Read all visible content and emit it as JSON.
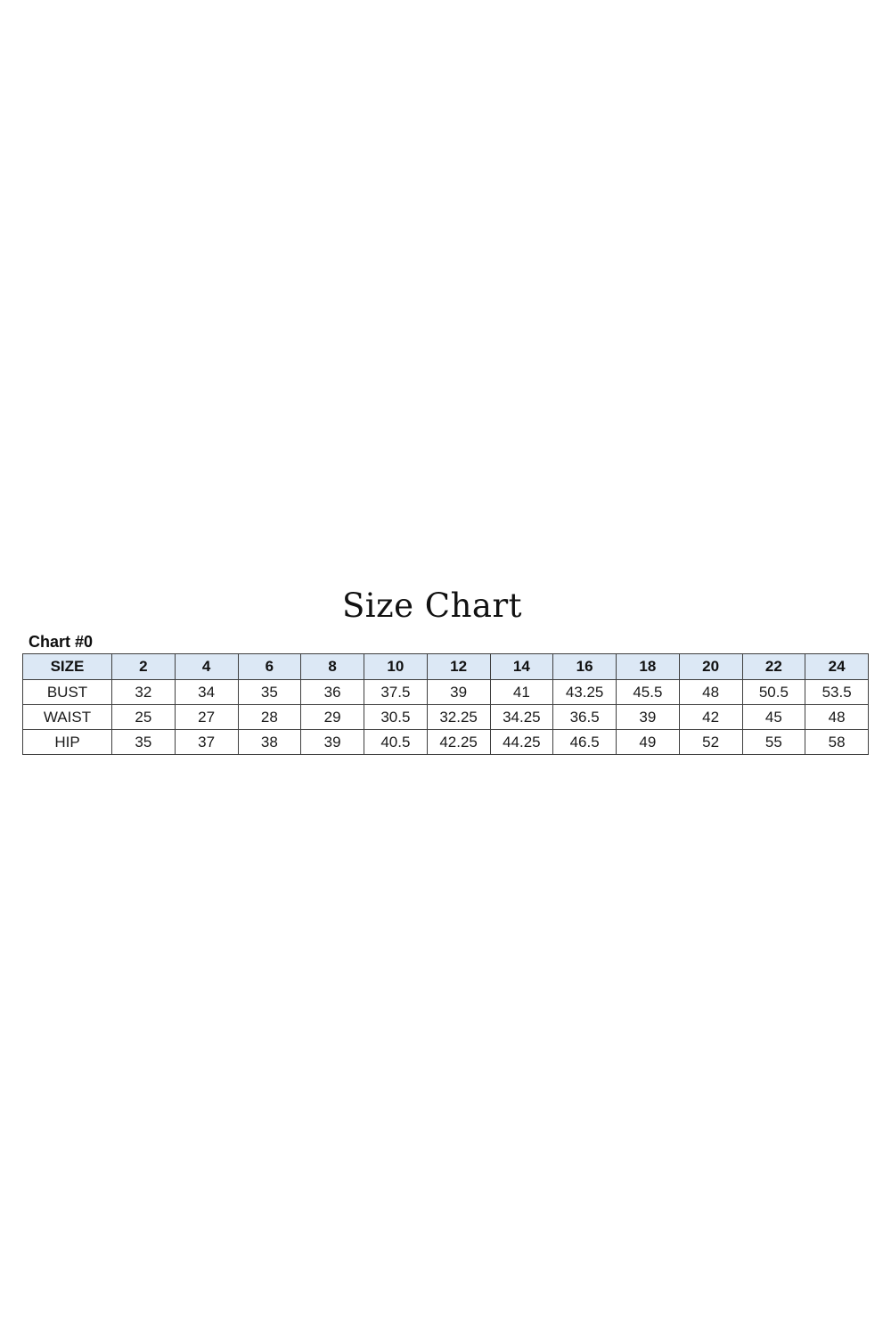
{
  "page": {
    "title": "Size Chart",
    "chart_label": "Chart #0"
  },
  "chart_data": {
    "type": "table",
    "title": "Size Chart",
    "subtitle": "Chart #0",
    "columns": [
      "SIZE",
      "2",
      "4",
      "6",
      "8",
      "10",
      "12",
      "14",
      "16",
      "18",
      "20",
      "22",
      "24"
    ],
    "rows": [
      {
        "label": "BUST",
        "values": [
          "32",
          "34",
          "35",
          "36",
          "37.5",
          "39",
          "41",
          "43.25",
          "45.5",
          "48",
          "50.5",
          "53.5"
        ]
      },
      {
        "label": "WAIST",
        "values": [
          "25",
          "27",
          "28",
          "29",
          "30.5",
          "32.25",
          "34.25",
          "36.5",
          "39",
          "42",
          "45",
          "48"
        ]
      },
      {
        "label": "HIP",
        "values": [
          "35",
          "37",
          "38",
          "39",
          "40.5",
          "42.25",
          "44.25",
          "46.5",
          "49",
          "52",
          "55",
          "58"
        ]
      }
    ],
    "layout_hints": {
      "header_row_highlighted": true,
      "grid": "on",
      "first_column_is_row_label": true
    },
    "colors": {
      "header_bg": "#dce8f5",
      "border": "#3f3f3f",
      "text": "#1a1a1a",
      "background": "#ffffff"
    }
  }
}
